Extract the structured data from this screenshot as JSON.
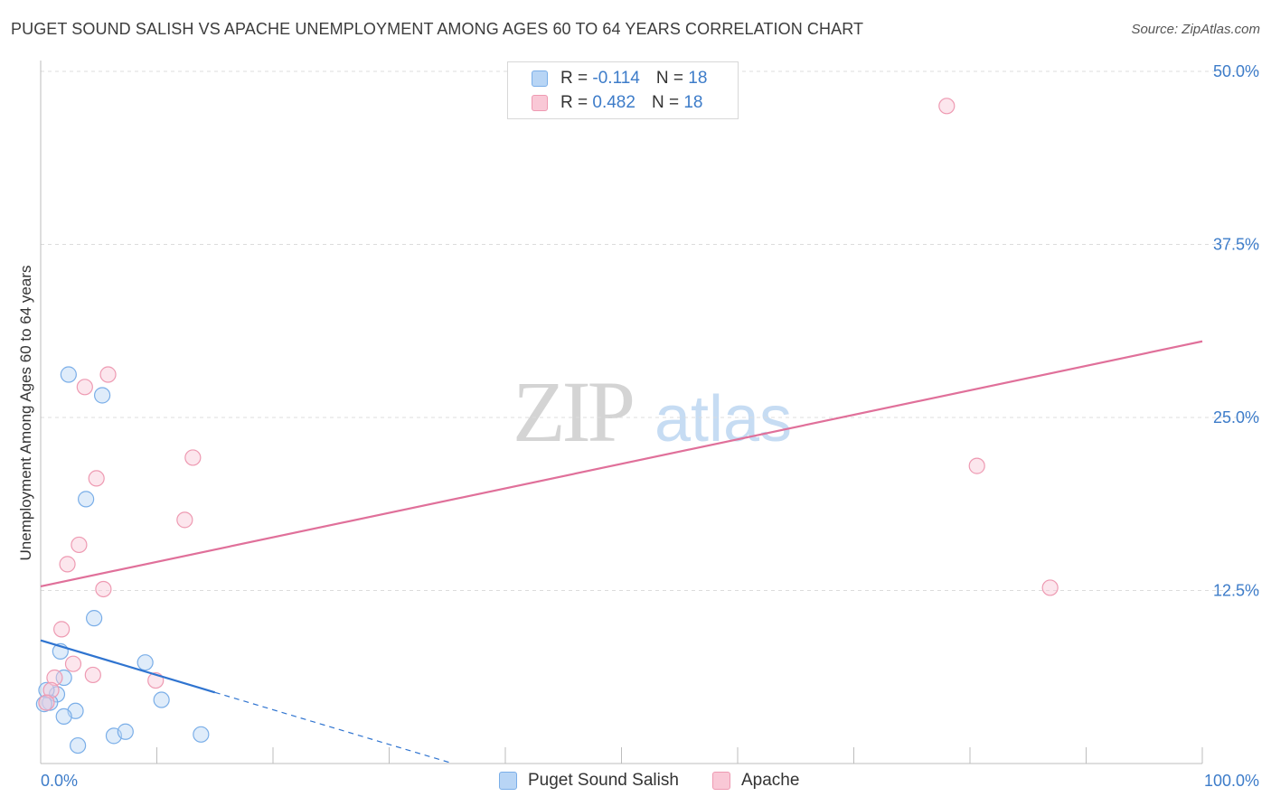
{
  "title": "PUGET SOUND SALISH VS APACHE UNEMPLOYMENT AMONG AGES 60 TO 64 YEARS CORRELATION CHART",
  "source": "Source: ZipAtlas.com",
  "watermark": {
    "zip": "ZIP",
    "atlas": "atlas"
  },
  "legend": {
    "r_label": "R =",
    "n_label": "N =",
    "series": [
      {
        "name": "Puget Sound Salish",
        "r": "-0.114",
        "n": "18",
        "color": "#7aaee8"
      },
      {
        "name": "Apache",
        "r": "0.482",
        "n": "18",
        "color": "#ee9ab2"
      }
    ]
  },
  "chart_data": {
    "type": "scatter",
    "title": "PUGET SOUND SALISH VS APACHE UNEMPLOYMENT AMONG AGES 60 TO 64 YEARS CORRELATION CHART",
    "xlabel": "",
    "ylabel": "Unemployment Among Ages 60 to 64 years",
    "x_unit": "%",
    "y_unit": "%",
    "xlim": [
      0,
      100
    ],
    "ylim": [
      0,
      52
    ],
    "x_tick_labels": [
      "0.0%",
      "100.0%"
    ],
    "y_ticks": [
      12.5,
      25.0,
      37.5,
      50.0
    ],
    "y_tick_labels": [
      "12.5%",
      "25.0%",
      "37.5%",
      "50.0%"
    ],
    "grid": true,
    "legend_position": "top-center",
    "series": [
      {
        "name": "Puget Sound Salish",
        "color": "#7aaee8",
        "points": [
          {
            "x": 2.4,
            "y": 28.1
          },
          {
            "x": 5.3,
            "y": 26.6
          },
          {
            "x": 3.9,
            "y": 19.1
          },
          {
            "x": 4.6,
            "y": 10.5
          },
          {
            "x": 1.7,
            "y": 8.1
          },
          {
            "x": 1.4,
            "y": 5.0
          },
          {
            "x": 2.0,
            "y": 6.2
          },
          {
            "x": 9.0,
            "y": 7.3
          },
          {
            "x": 10.4,
            "y": 4.6
          },
          {
            "x": 0.8,
            "y": 4.4
          },
          {
            "x": 0.5,
            "y": 5.3
          },
          {
            "x": 3.0,
            "y": 3.8
          },
          {
            "x": 2.0,
            "y": 3.4
          },
          {
            "x": 6.3,
            "y": 2.0
          },
          {
            "x": 7.3,
            "y": 2.3
          },
          {
            "x": 13.8,
            "y": 2.1
          },
          {
            "x": 3.2,
            "y": 1.3
          },
          {
            "x": 0.3,
            "y": 4.3
          }
        ],
        "trend": {
          "x_start": 0,
          "y_start": 8.9,
          "x_solid_end": 15,
          "x_end": 35.5,
          "y_end": 0
        }
      },
      {
        "name": "Apache",
        "color": "#ee9ab2",
        "points": [
          {
            "x": 78.0,
            "y": 47.5
          },
          {
            "x": 5.8,
            "y": 28.1
          },
          {
            "x": 3.8,
            "y": 27.2
          },
          {
            "x": 13.1,
            "y": 22.1
          },
          {
            "x": 4.8,
            "y": 20.6
          },
          {
            "x": 12.4,
            "y": 17.6
          },
          {
            "x": 80.6,
            "y": 21.5
          },
          {
            "x": 3.3,
            "y": 15.8
          },
          {
            "x": 2.3,
            "y": 14.4
          },
          {
            "x": 5.4,
            "y": 12.6
          },
          {
            "x": 86.9,
            "y": 12.7
          },
          {
            "x": 1.8,
            "y": 9.7
          },
          {
            "x": 2.8,
            "y": 7.2
          },
          {
            "x": 4.5,
            "y": 6.4
          },
          {
            "x": 9.9,
            "y": 6.0
          },
          {
            "x": 1.2,
            "y": 6.2
          },
          {
            "x": 0.9,
            "y": 5.3
          },
          {
            "x": 0.5,
            "y": 4.4
          }
        ],
        "trend": {
          "x_start": 0,
          "y_start": 12.8,
          "x_end": 100,
          "y_end": 30.5
        }
      }
    ]
  }
}
